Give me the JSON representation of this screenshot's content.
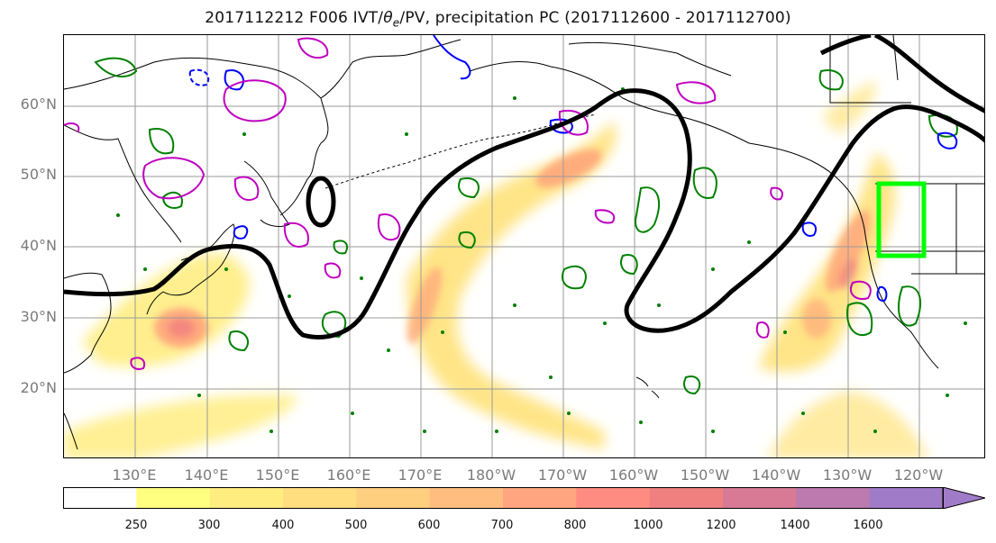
{
  "title": {
    "prefix": "2017112212 F006 IVT/",
    "theta_symbol": "θ",
    "theta_sub": "e",
    "suffix": "/PV, precipitation PC (2017112600 - 2017112700)"
  },
  "map": {
    "lat_labels": [
      "60°N",
      "50°N",
      "40°N",
      "30°N",
      "20°N"
    ],
    "lon_labels": [
      "130°E",
      "140°E",
      "150°E",
      "160°E",
      "170°E",
      "180°W",
      "170°W",
      "160°W",
      "150°W",
      "140°W",
      "130°W",
      "120°W"
    ],
    "colors": {
      "ivt_contour": "#000000",
      "pv_positive": "#008000",
      "pv_negative": "#0000ff",
      "theta_e": "#bf00bf",
      "highlight_box": "#00ff00",
      "coast": "#000000",
      "grid": "#9a9a9a"
    }
  },
  "colorbar": {
    "ticks": [
      "250",
      "300",
      "400",
      "500",
      "600",
      "700",
      "800",
      "1000",
      "1200",
      "1400",
      "1600"
    ],
    "colors": [
      "#ffffff",
      "#ffff80",
      "#ffed80",
      "#ffde80",
      "#ffcf80",
      "#ffbe80",
      "#ffa680",
      "#ff8c80",
      "#f08080",
      "#d87a95",
      "#bd7aae",
      "#a07bc8"
    ]
  }
}
